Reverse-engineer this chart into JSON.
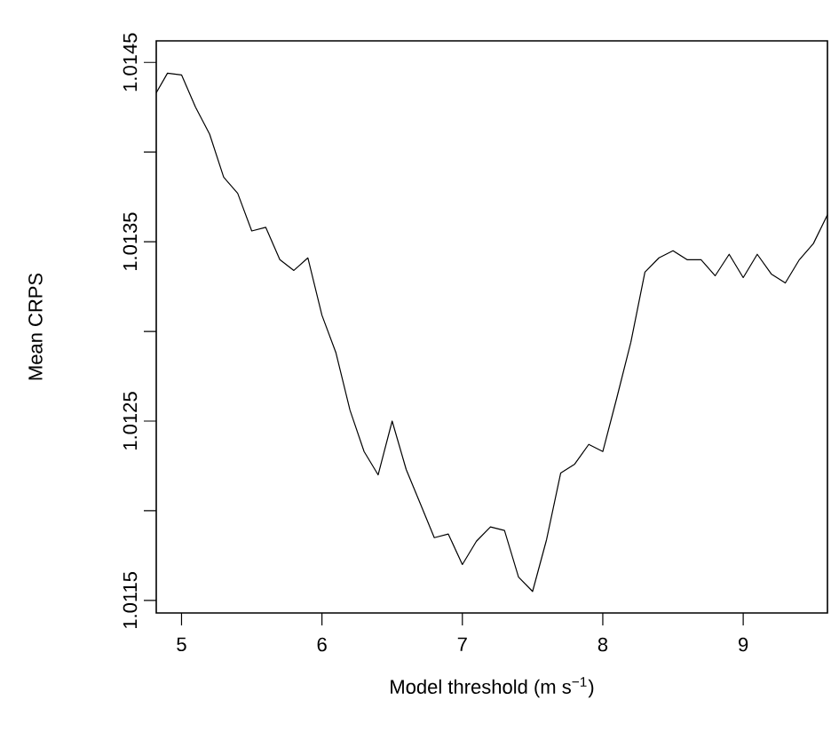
{
  "chart_data": {
    "type": "line",
    "xlabel": "Model threshold (m s$^{−1}$)",
    "ylabel": "Mean CRPS",
    "x": [
      4.82,
      4.9,
      5.0,
      5.1,
      5.2,
      5.3,
      5.4,
      5.5,
      5.6,
      5.7,
      5.8,
      5.9,
      6.0,
      6.1,
      6.2,
      6.3,
      6.4,
      6.5,
      6.6,
      6.7,
      6.8,
      6.9,
      7.0,
      7.1,
      7.2,
      7.3,
      7.4,
      7.5,
      7.6,
      7.7,
      7.8,
      7.9,
      8.0,
      8.1,
      8.2,
      8.3,
      8.4,
      8.5,
      8.6,
      8.7,
      8.8,
      8.9,
      9.0,
      9.1,
      9.2,
      9.3,
      9.4,
      9.5,
      9.6
    ],
    "series": [
      {
        "color": "#000000",
        "values": [
          1.01433,
          1.01444,
          1.01443,
          1.01425,
          1.0141,
          1.01386,
          1.01377,
          1.01356,
          1.01358,
          1.0134,
          1.01334,
          1.01341,
          1.01309,
          1.01288,
          1.01256,
          1.01233,
          1.0122,
          1.0125,
          1.01223,
          1.01204,
          1.01185,
          1.01187,
          1.0117,
          1.01183,
          1.01191,
          1.01189,
          1.01163,
          1.01155,
          1.01184,
          1.01221,
          1.01226,
          1.01237,
          1.01233,
          1.01263,
          1.01294,
          1.01333,
          1.01341,
          1.01345,
          1.0134,
          1.0134,
          1.01331,
          1.01343,
          1.0133,
          1.01343,
          1.01332,
          1.01327,
          1.0134,
          1.01349,
          1.01365
        ]
      }
    ],
    "xlim": [
      4.82,
      9.6
    ],
    "ylim": [
      1.01143,
      1.01462
    ],
    "xticks": [
      5,
      6,
      7,
      8,
      9
    ],
    "yticks": [
      1.0115,
      {
        "value": 1.012,
        "label": null
      },
      1.0125,
      {
        "value": 1.013,
        "label": null
      },
      1.0135,
      {
        "value": 1.014,
        "label": null
      },
      1.0145
    ],
    "marker": "none",
    "line_style": "solid"
  }
}
